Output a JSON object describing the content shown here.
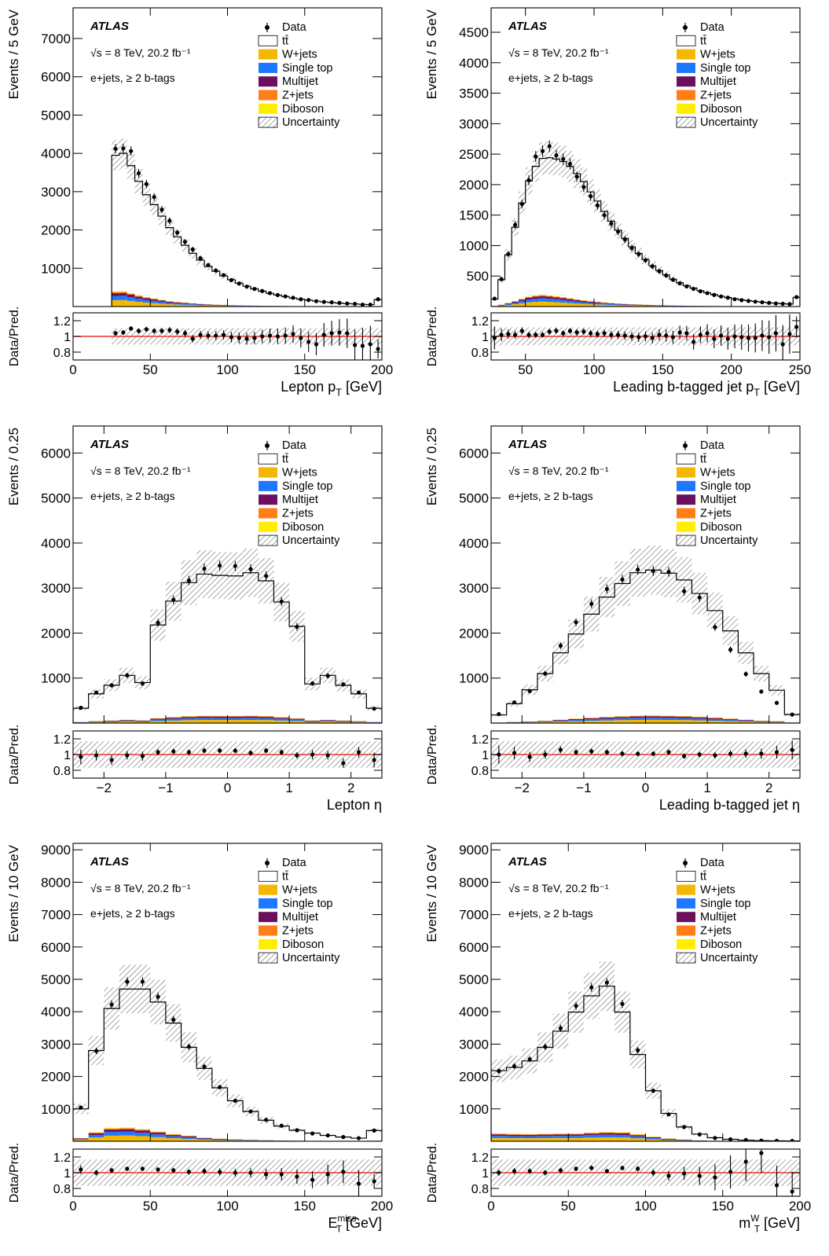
{
  "legend": {
    "atlas_label": "ATLAS",
    "energy_label": "√s = 8 TeV, 20.2 fb⁻¹",
    "channel_label": "e+jets, ≥ 2 b-tags",
    "entries": [
      {
        "key": "data",
        "label": "Data"
      },
      {
        "key": "ttbar",
        "label": "tt̄"
      },
      {
        "key": "wjets",
        "label": "W+jets"
      },
      {
        "key": "singletop",
        "label": "Single top"
      },
      {
        "key": "multijet",
        "label": "Multijet"
      },
      {
        "key": "zjets",
        "label": "Z+jets"
      },
      {
        "key": "diboson",
        "label": "Diboson"
      },
      {
        "key": "uncertainty",
        "label": "Uncertainty"
      }
    ]
  },
  "colors": {
    "ttbar": "#ffffff",
    "wjets": "#f5b800",
    "singletop": "#1e78ff",
    "multijet": "#6b0f5e",
    "zjets": "#ff7e15",
    "diboson": "#ffee00",
    "ratio_line": "#e8332b"
  },
  "ratio_ylabel": "Data/Pred.",
  "ratio_ylim": [
    0.7,
    1.3
  ],
  "ratio_ticks": [
    "1.2",
    "1",
    "0.8"
  ],
  "chart_data": [
    {
      "type": "bar",
      "stacked": true,
      "ylabel": "Events / 5 GeV",
      "xlabel": "Lepton p_T [GeV]",
      "xlim": [
        0,
        200
      ],
      "ylim": [
        0,
        7800
      ],
      "yticks": [
        1000,
        2000,
        3000,
        4000,
        5000,
        6000,
        7000
      ],
      "xticks": [
        0,
        50,
        100,
        150,
        200
      ],
      "x_start": 25,
      "bin_width": 5,
      "total": [
        3950,
        4000,
        3680,
        3270,
        2920,
        2660,
        2360,
        2060,
        1820,
        1600,
        1390,
        1210,
        1050,
        920,
        800,
        700,
        610,
        530,
        460,
        400,
        345,
        300,
        260,
        220,
        190,
        165,
        142,
        122,
        105,
        90,
        78,
        68,
        58,
        50,
        180
      ],
      "data": [
        4120,
        4130,
        4060,
        3480,
        3200,
        2860,
        2530,
        2240,
        1930,
        1690,
        1490,
        1260,
        1080,
        940,
        820,
        690,
        600,
        520,
        460,
        405,
        350,
        300,
        265,
        230,
        190,
        170,
        140,
        120,
        110,
        95,
        78,
        70,
        50,
        48,
        190
      ],
      "bkg_fraction": [
        0.1,
        0.1,
        0.095,
        0.09,
        0.085,
        0.08,
        0.075,
        0.07,
        0.068,
        0.065,
        0.062,
        0.06,
        0.058,
        0.056,
        0.055,
        0.054,
        0.053,
        0.052,
        0.05,
        0.05,
        0.05,
        0.05,
        0.05,
        0.05,
        0.05,
        0.05,
        0.05,
        0.05,
        0.05,
        0.05,
        0.05,
        0.05,
        0.05,
        0.05,
        0.05
      ],
      "uncertainty_fraction": 0.1,
      "ratio": [
        1.04,
        1.05,
        1.1,
        1.07,
        1.09,
        1.07,
        1.07,
        1.08,
        1.06,
        1.04,
        0.97,
        1.02,
        1.01,
        1.01,
        1.02,
        0.99,
        0.98,
        0.97,
        0.98,
        1.0,
        1.01,
        1.0,
        1.01,
        1.03,
        0.98,
        0.93,
        0.9,
        1.02,
        1.04,
        1.05,
        1.04,
        0.89,
        0.88,
        0.9,
        0.84
      ]
    },
    {
      "type": "bar",
      "stacked": true,
      "ylabel": "Events / 5 GeV",
      "xlabel": "Leading b-tagged jet p_T [GeV]",
      "xlim": [
        25,
        250
      ],
      "ylim": [
        0,
        4900
      ],
      "yticks": [
        500,
        1000,
        1500,
        2000,
        2500,
        3000,
        3500,
        4000,
        4500
      ],
      "xticks": [
        50,
        100,
        150,
        200,
        250
      ],
      "x_start": 25,
      "bin_width": 5,
      "total": [
        120,
        440,
        850,
        1300,
        1700,
        2060,
        2300,
        2430,
        2440,
        2420,
        2380,
        2300,
        2180,
        2050,
        1880,
        1730,
        1560,
        1400,
        1250,
        1120,
        980,
        870,
        770,
        670,
        590,
        520,
        450,
        390,
        340,
        300,
        260,
        225,
        195,
        170,
        148,
        128,
        110,
        96,
        83,
        72,
        62,
        54,
        47,
        40,
        150
      ],
      "data": [
        130,
        450,
        860,
        1340,
        1680,
        2070,
        2460,
        2550,
        2630,
        2480,
        2420,
        2340,
        2130,
        1960,
        1810,
        1660,
        1500,
        1360,
        1230,
        1100,
        960,
        860,
        760,
        660,
        580,
        510,
        440,
        380,
        330,
        290,
        250,
        220,
        190,
        165,
        145,
        120,
        105,
        92,
        80,
        70,
        60,
        50,
        45,
        40,
        155
      ],
      "bkg_fraction": [
        0.08,
        0.07,
        0.07,
        0.07,
        0.075,
        0.08,
        0.08,
        0.08,
        0.075,
        0.07,
        0.065,
        0.06,
        0.055,
        0.05,
        0.048,
        0.046,
        0.044,
        0.042,
        0.04,
        0.04,
        0.04,
        0.04,
        0.04,
        0.04,
        0.04,
        0.04,
        0.04,
        0.04,
        0.04,
        0.04,
        0.04,
        0.04,
        0.04,
        0.04,
        0.04,
        0.04,
        0.04,
        0.04,
        0.04,
        0.04,
        0.04,
        0.04,
        0.04,
        0.04,
        0.04
      ],
      "uncertainty_fraction": 0.11,
      "ratio": [
        0.98,
        1.02,
        1.03,
        1.02,
        1.07,
        1.02,
        1.02,
        1.02,
        1.06,
        1.07,
        1.04,
        1.07,
        1.05,
        1.06,
        1.04,
        1.03,
        1.04,
        1.02,
        1.02,
        1.01,
        1.0,
        0.99,
        1.0,
        0.98,
        1.02,
        1.01,
        0.99,
        1.05,
        1.04,
        0.93,
        1.02,
        1.04,
        0.97,
        1.01,
        0.97,
        1.0,
        0.99,
        0.98,
        0.98,
        1.01,
        0.99,
        1.04,
        0.9,
        1.03,
        1.12
      ]
    },
    {
      "type": "bar",
      "stacked": true,
      "ylabel": "Events / 0.25",
      "xlabel": "Lepton η",
      "xlim": [
        -2.5,
        2.5
      ],
      "ylim": [
        0,
        6600
      ],
      "yticks": [
        1000,
        2000,
        3000,
        4000,
        5000,
        6000
      ],
      "xticks": [
        -2,
        -1,
        0,
        1,
        2
      ],
      "x_start": -2.5,
      "bin_width": 0.25,
      "total": [
        330,
        650,
        840,
        1060,
        900,
        2180,
        2710,
        3120,
        3310,
        3280,
        3270,
        3340,
        3160,
        2690,
        2150,
        870,
        1060,
        840,
        650,
        330
      ],
      "data": [
        340,
        680,
        840,
        1060,
        880,
        2230,
        2740,
        3170,
        3430,
        3500,
        3490,
        3420,
        3270,
        2700,
        2140,
        880,
        1050,
        860,
        680,
        320
      ],
      "bkg_fraction": [
        0.08,
        0.07,
        0.07,
        0.07,
        0.07,
        0.05,
        0.05,
        0.05,
        0.05,
        0.05,
        0.05,
        0.05,
        0.05,
        0.05,
        0.05,
        0.07,
        0.07,
        0.07,
        0.07,
        0.08
      ],
      "uncertainty_fraction": 0.16,
      "ratio": [
        0.97,
        0.99,
        0.93,
        0.99,
        0.98,
        1.03,
        1.04,
        1.03,
        1.05,
        1.05,
        1.05,
        1.02,
        1.05,
        1.03,
        0.99,
        1.0,
        0.99,
        0.89,
        1.03,
        0.93
      ]
    },
    {
      "type": "bar",
      "stacked": true,
      "ylabel": "Events / 0.25",
      "xlabel": "Leading b-tagged jet η",
      "xlim": [
        -2.5,
        2.5
      ],
      "ylim": [
        0,
        6600
      ],
      "yticks": [
        1000,
        2000,
        3000,
        4000,
        5000,
        6000
      ],
      "xticks": [
        -2,
        -1,
        0,
        1,
        2
      ],
      "x_start": -2.5,
      "bin_width": 0.25,
      "total": [
        180,
        430,
        740,
        1100,
        1560,
        1980,
        2420,
        2800,
        3100,
        3340,
        3400,
        3330,
        3180,
        2880,
        2500,
        2050,
        1560,
        1100,
        730,
        190
      ],
      "data": [
        200,
        460,
        710,
        1100,
        1720,
        2240,
        2650,
        2980,
        3190,
        3410,
        3380,
        3360,
        2930,
        2790,
        2130,
        1630,
        1090,
        700,
        450,
        190
      ],
      "bkg_fraction": [
        0.07,
        0.06,
        0.05,
        0.05,
        0.05,
        0.05,
        0.05,
        0.05,
        0.05,
        0.05,
        0.05,
        0.05,
        0.05,
        0.05,
        0.05,
        0.05,
        0.05,
        0.05,
        0.06,
        0.07
      ],
      "uncertainty_fraction": 0.16,
      "ratio": [
        1.0,
        1.02,
        0.97,
        1.0,
        1.06,
        1.03,
        1.04,
        1.03,
        1.01,
        1.01,
        1.01,
        1.03,
        0.98,
        1.0,
        0.99,
        1.01,
        1.01,
        1.01,
        1.03,
        1.06
      ]
    },
    {
      "type": "bar",
      "stacked": true,
      "ylabel": "Events / 10 GeV",
      "xlabel": "E_T^miss [GeV]",
      "xlim": [
        0,
        200
      ],
      "ylim": [
        0,
        9200
      ],
      "yticks": [
        1000,
        2000,
        3000,
        4000,
        5000,
        6000,
        7000,
        8000,
        9000
      ],
      "xticks": [
        0,
        50,
        100,
        150,
        200
      ],
      "x_start": 0,
      "bin_width": 10,
      "total": [
        1000,
        2800,
        4100,
        4700,
        4700,
        4300,
        3650,
        2900,
        2250,
        1650,
        1250,
        920,
        650,
        470,
        340,
        250,
        180,
        130,
        95,
        330
      ],
      "data": [
        1040,
        2790,
        4220,
        4930,
        4930,
        4460,
        3750,
        2920,
        2300,
        1670,
        1250,
        920,
        660,
        480,
        340,
        240,
        180,
        130,
        95,
        330
      ],
      "bkg_fraction": [
        0.1,
        0.1,
        0.1,
        0.09,
        0.08,
        0.07,
        0.06,
        0.06,
        0.05,
        0.05,
        0.05,
        0.05,
        0.05,
        0.05,
        0.05,
        0.05,
        0.05,
        0.05,
        0.05,
        0.05
      ],
      "uncertainty_fraction": 0.16,
      "ratio": [
        1.04,
        1.0,
        1.03,
        1.05,
        1.05,
        1.04,
        1.03,
        1.01,
        1.02,
        1.01,
        1.0,
        1.0,
        0.98,
        0.98,
        0.95,
        0.91,
        0.98,
        1.01,
        0.86,
        0.89
      ]
    },
    {
      "type": "bar",
      "stacked": true,
      "ylabel": "Events / 10 GeV",
      "xlabel": "m_T^W [GeV]",
      "xlim": [
        0,
        200
      ],
      "ylim": [
        0,
        9200
      ],
      "yticks": [
        1000,
        2000,
        3000,
        4000,
        5000,
        6000,
        7000,
        8000,
        9000
      ],
      "xticks": [
        0,
        50,
        100,
        150,
        200
      ],
      "x_start": 0,
      "bin_width": 10,
      "total": [
        2180,
        2280,
        2480,
        2900,
        3400,
        3990,
        4490,
        4790,
        3990,
        2680,
        1560,
        860,
        440,
        220,
        110,
        60,
        35,
        20,
        12,
        10
      ],
      "data": [
        2170,
        2320,
        2530,
        2920,
        3490,
        4180,
        4750,
        4900,
        4240,
        2810,
        1560,
        830,
        440,
        210,
        100,
        60,
        40,
        20,
        12,
        10
      ],
      "bkg_fraction": [
        0.11,
        0.1,
        0.09,
        0.08,
        0.07,
        0.06,
        0.06,
        0.06,
        0.07,
        0.08,
        0.09,
        0.1,
        0.12,
        0.12,
        0.12,
        0.12,
        0.12,
        0.12,
        0.12,
        0.12
      ],
      "uncertainty_fraction": 0.16,
      "ratio": [
        1.0,
        1.02,
        1.02,
        1.0,
        1.03,
        1.05,
        1.06,
        1.02,
        1.06,
        1.05,
        1.0,
        0.96,
        0.99,
        0.96,
        0.94,
        1.01,
        1.14,
        1.25,
        0.84,
        0.76
      ]
    }
  ]
}
